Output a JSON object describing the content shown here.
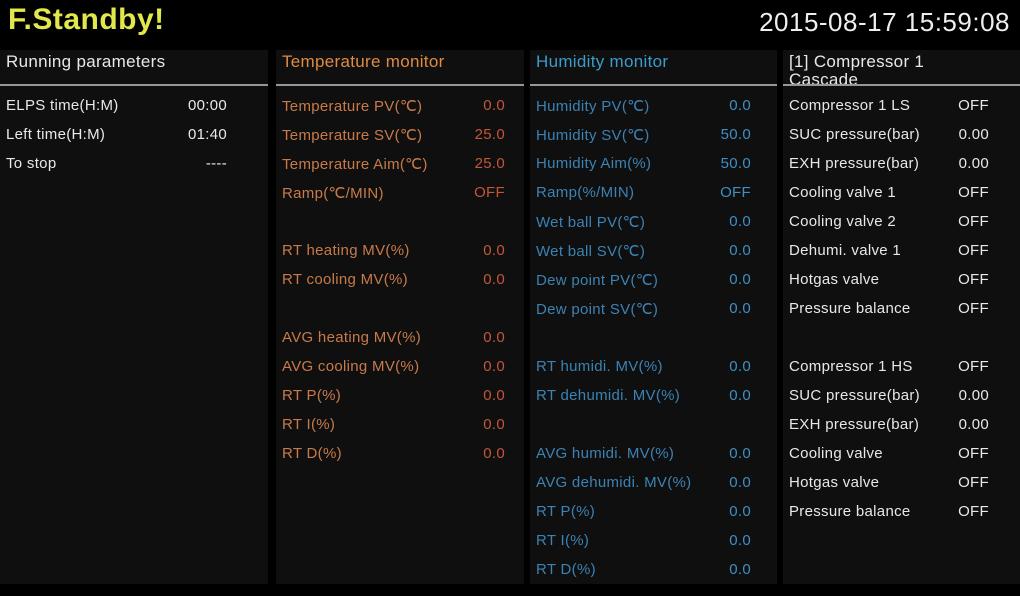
{
  "titlebar": {
    "status": "F.Standby!",
    "datetime": "2015-08-17 15:59:08"
  },
  "colors": {
    "status_yellow": "#e2e84b",
    "white_text": "#e8e8e8",
    "temperature_orange": "#e18a41",
    "humidity_blue": "#3d9bca",
    "background": "#000000",
    "panel_background": "#0f0f0f",
    "header_underline": "#979797"
  },
  "panels": [
    {
      "id": "running-parameters",
      "header": "Running parameters",
      "header2": "",
      "header_color": "#e8e8e8",
      "label_color": "#e8e8e8",
      "value_color": "#e8e8e8",
      "rows": [
        {
          "label": "ELPS time(H:M)",
          "value": "00:00"
        },
        {
          "label": "Left time(H:M)",
          "value": "01:40"
        },
        {
          "label": "To stop",
          "value": "----"
        }
      ]
    },
    {
      "id": "temperature-monitor",
      "header": "Temperature monitor",
      "header2": "",
      "header_color": "#e18a41",
      "label_color": "#c87a4a",
      "value_color": "#c3563a",
      "rows": [
        {
          "label": "Temperature PV(℃)",
          "value": "0.0"
        },
        {
          "label": "Temperature SV(℃)",
          "value": "25.0"
        },
        {
          "label": "Temperature Aim(℃)",
          "value": "25.0"
        },
        {
          "label": "Ramp(℃/MIN)",
          "value": "OFF"
        },
        {
          "label": "",
          "value": ""
        },
        {
          "label": "RT heating MV(%)",
          "value": "0.0"
        },
        {
          "label": "RT cooling MV(%)",
          "value": "0.0"
        },
        {
          "label": "",
          "value": ""
        },
        {
          "label": "AVG heating MV(%)",
          "value": "0.0"
        },
        {
          "label": "AVG cooling MV(%)",
          "value": "0.0"
        },
        {
          "label": "RT P(%)",
          "value": "0.0"
        },
        {
          "label": "RT I(%)",
          "value": "0.0"
        },
        {
          "label": "RT D(%)",
          "value": "0.0"
        }
      ]
    },
    {
      "id": "humidity-monitor",
      "header": "Humidity monitor",
      "header2": "",
      "header_color": "#3d9bca",
      "label_color": "#3c82b4",
      "value_color": "#3f8fc4",
      "rows": [
        {
          "label": "Humidity PV(℃)",
          "value": "0.0"
        },
        {
          "label": "Humidity SV(℃)",
          "value": "50.0"
        },
        {
          "label": "Humidity Aim(%)",
          "value": "50.0"
        },
        {
          "label": "Ramp(%/MIN)",
          "value": "OFF"
        },
        {
          "label": "Wet ball PV(℃)",
          "value": "0.0"
        },
        {
          "label": "Wet ball SV(℃)",
          "value": "0.0"
        },
        {
          "label": "Dew point PV(℃)",
          "value": "0.0"
        },
        {
          "label": "Dew point SV(℃)",
          "value": "0.0"
        },
        {
          "label": "",
          "value": ""
        },
        {
          "label": "RT humidi. MV(%)",
          "value": "0.0"
        },
        {
          "label": "RT dehumidi. MV(%)",
          "value": "0.0"
        },
        {
          "label": "",
          "value": ""
        },
        {
          "label": "AVG humidi. MV(%)",
          "value": "0.0"
        },
        {
          "label": "AVG dehumidi. MV(%)",
          "value": "0.0"
        },
        {
          "label": "RT P(%)",
          "value": "0.0"
        },
        {
          "label": "RT I(%)",
          "value": "0.0"
        },
        {
          "label": "RT D(%)",
          "value": "0.0"
        }
      ]
    },
    {
      "id": "compressor-1-cascade",
      "header": "[1] Compressor 1",
      "header2": "Cascade",
      "header_color": "#e8e8e8",
      "label_color": "#e8e8e8",
      "value_color": "#e8e8e8",
      "rows": [
        {
          "label": "Compressor 1 LS",
          "value": "OFF"
        },
        {
          "label": "SUC pressure(bar)",
          "value": "0.00"
        },
        {
          "label": "EXH pressure(bar)",
          "value": "0.00"
        },
        {
          "label": "Cooling valve 1",
          "value": "OFF"
        },
        {
          "label": "Cooling valve 2",
          "value": "OFF"
        },
        {
          "label": "Dehumi. valve 1",
          "value": "OFF"
        },
        {
          "label": "Hotgas valve",
          "value": "OFF"
        },
        {
          "label": "Pressure balance",
          "value": "OFF"
        },
        {
          "label": "",
          "value": ""
        },
        {
          "label": "Compressor 1 HS",
          "value": "OFF"
        },
        {
          "label": "SUC pressure(bar)",
          "value": "0.00"
        },
        {
          "label": "EXH pressure(bar)",
          "value": "0.00"
        },
        {
          "label": "Cooling valve",
          "value": "OFF"
        },
        {
          "label": "Hotgas valve",
          "value": "OFF"
        },
        {
          "label": "Pressure balance",
          "value": "OFF"
        }
      ]
    }
  ]
}
